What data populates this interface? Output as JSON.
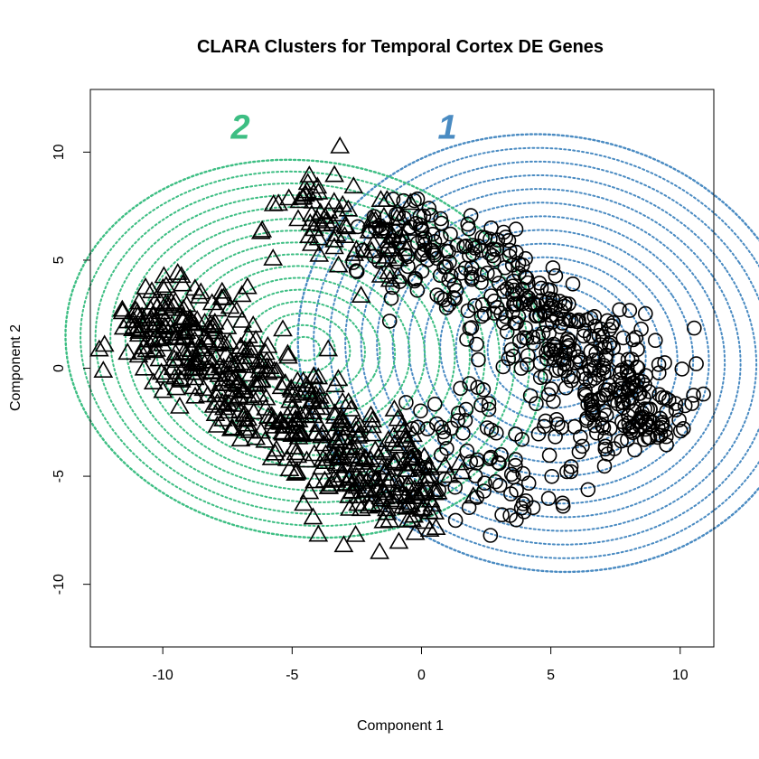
{
  "chart_data": {
    "type": "scatter",
    "title": "CLARA Clusters for Temporal Cortex DE Genes",
    "xlabel": "Component 1",
    "ylabel": "Component 2",
    "xlim": [
      -12.8,
      11.3
    ],
    "ylim": [
      -12.9,
      12.9
    ],
    "x_ticks": [
      -10,
      -5,
      0,
      5,
      10
    ],
    "y_ticks": [
      -10,
      -5,
      0,
      5,
      10
    ],
    "x_tick_labels": [
      "-10",
      "-5",
      "0",
      "5",
      "10"
    ],
    "y_tick_labels": [
      "-10",
      "-5",
      "0",
      "5",
      "10"
    ],
    "grid": false,
    "legend": "none",
    "clusters": [
      {
        "label": "1",
        "marker": "circle",
        "ellipse_color": "#4A8BC2",
        "label_color": "#4A8BC2",
        "ellipse": {
          "center": [
            5.0,
            0.7
          ],
          "semi_axes": [
            9.6,
            10.3
          ],
          "rotation_deg": 30
        },
        "label_position": [
          1.0,
          11.2
        ],
        "point_bands": [
          {
            "from": [
              -1.5,
              7.0
            ],
            "to": [
              3.5,
              3.2
            ],
            "spread": 1.3,
            "count": 150
          },
          {
            "from": [
              3.5,
              3.2
            ],
            "to": [
              9.5,
              -3.2
            ],
            "spread": 1.2,
            "count": 320
          },
          {
            "from": [
              0.5,
              -1.0
            ],
            "to": [
              5.0,
              -6.5
            ],
            "spread": 1.7,
            "count": 90
          }
        ]
      },
      {
        "label": "2",
        "marker": "triangle",
        "ellipse_color": "#3DBE83",
        "label_color": "#3DBE83",
        "ellipse": {
          "center": [
            -4.5,
            0.9
          ],
          "semi_axes": [
            9.4,
            8.6
          ],
          "rotation_deg": -25
        },
        "label_position": [
          -7.0,
          11.2
        ],
        "point_bands": [
          {
            "from": [
              -11.0,
              3.0
            ],
            "to": [
              -5.0,
              -2.5
            ],
            "spread": 1.2,
            "count": 300
          },
          {
            "from": [
              -5.0,
              -2.5
            ],
            "to": [
              0.5,
              -6.5
            ],
            "spread": 1.3,
            "count": 230
          },
          {
            "from": [
              -5.0,
              8.0
            ],
            "to": [
              -1.0,
              5.0
            ],
            "spread": 1.0,
            "count": 80
          }
        ]
      }
    ]
  }
}
